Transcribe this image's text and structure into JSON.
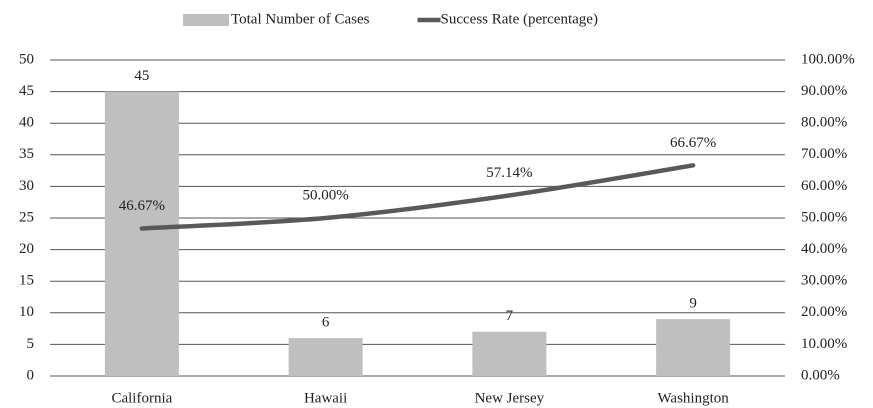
{
  "chart_data": {
    "type": "bar_line",
    "categories": [
      "California",
      "Hawaii",
      "New Jersey",
      "Washington"
    ],
    "series": [
      {
        "name": "Total Number of Cases",
        "type": "bar",
        "color": "#bfbfbf",
        "values": [
          45,
          6,
          7,
          9
        ]
      },
      {
        "name": "Success Rate (percentage)",
        "type": "line",
        "axis": "y2",
        "color": "#595959",
        "values": [
          46.67,
          50,
          57.14,
          66.67
        ],
        "value_labels": [
          "46.67%",
          "50.00%",
          "57.14%",
          "66.67%"
        ]
      }
    ],
    "ylim": [
      0,
      50
    ],
    "yticks": [
      0,
      5,
      10,
      15,
      20,
      25,
      30,
      35,
      40,
      45,
      50
    ],
    "y2lim": [
      0,
      100
    ],
    "y2ticks": [
      {
        "value": 0,
        "label": "0.00%"
      },
      {
        "value": 10,
        "label": "10.00%"
      },
      {
        "value": 20,
        "label": "20.00%"
      },
      {
        "value": 30,
        "label": "30.00%"
      },
      {
        "value": 40,
        "label": "40.00%"
      },
      {
        "value": 50,
        "label": "50.00%"
      },
      {
        "value": 60,
        "label": "60.00%"
      },
      {
        "value": 70,
        "label": "70.00%"
      },
      {
        "value": 80,
        "label": "80.00%"
      },
      {
        "value": 90,
        "label": "90.00%"
      },
      {
        "value": 100,
        "label": "100.00%"
      }
    ],
    "grid": true,
    "legend": "top"
  }
}
